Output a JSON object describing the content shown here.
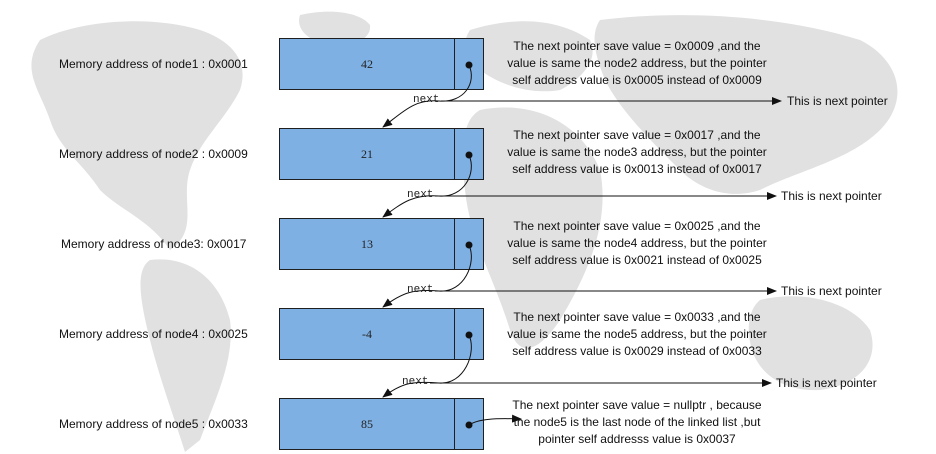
{
  "nodes": [
    {
      "address_label": "Memory address of node1 : 0x0001",
      "value": "42",
      "desc": [
        "The next pointer save value = 0x0009 ,and the",
        "value is same the node2 address, but the pointer",
        "self address value is 0x0005 instead of 0x0009"
      ]
    },
    {
      "address_label": "Memory address of node2 : 0x0009",
      "value": "21",
      "desc": [
        "The next pointer save value = 0x0017 ,and the",
        "value is same the node3 address, but the pointer",
        "self address value is 0x0013 instead of 0x0017"
      ]
    },
    {
      "address_label": "Memory address of node3: 0x0017",
      "value": "13",
      "desc": [
        "The next pointer save value = 0x0025 ,and the",
        "value is same the node4 address, but the pointer",
        "self address value is 0x0021 instead of 0x0025"
      ]
    },
    {
      "address_label": "Memory address of node4 : 0x0025",
      "value": "-4",
      "desc": [
        "The next pointer save value = 0x0033 ,and the",
        "value is same the node5 address, but the pointer",
        "self address value is 0x0029 instead of 0x0033"
      ]
    },
    {
      "address_label": "Memory address of node5 : 0x0033",
      "value": "85",
      "desc": [
        "The next pointer save value = nullptr , because",
        "the node5 is the last node of the linked list ,but",
        "pointer self addresss value is 0x0037"
      ]
    }
  ],
  "links": [
    {
      "label": "next",
      "tip": "This is next pointer"
    },
    {
      "label": "next",
      "tip": "This is next pointer"
    },
    {
      "label": "next",
      "tip": "This is next pointer"
    },
    {
      "label": "next",
      "tip": "This is next pointer"
    }
  ],
  "colors": {
    "node_fill": "#7fb0e3",
    "border": "#1f1f1f",
    "map": "#dcdcdc"
  }
}
